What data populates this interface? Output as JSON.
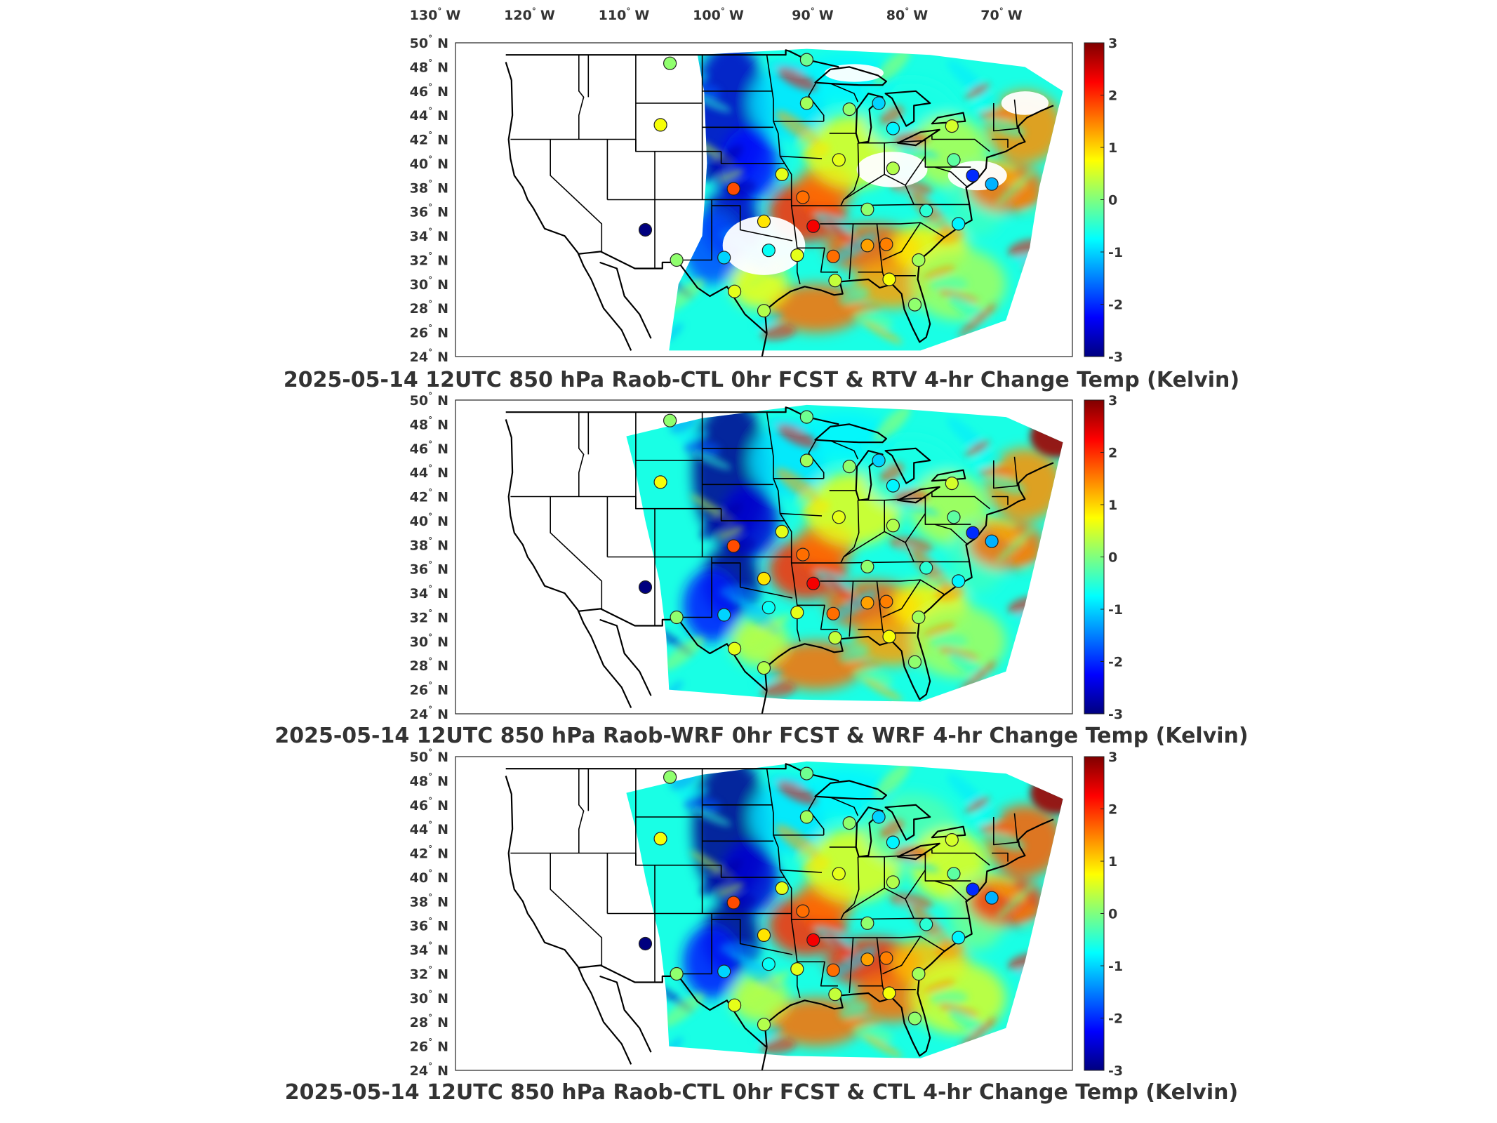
{
  "lon_labels": [
    {
      "deg": "130",
      "dir": "W",
      "lon": -130
    },
    {
      "deg": "120",
      "dir": "W",
      "lon": -120
    },
    {
      "deg": "110",
      "dir": "W",
      "lon": -110
    },
    {
      "deg": "100",
      "dir": "W",
      "lon": -100
    },
    {
      "deg": "90",
      "dir": "W",
      "lon": -90
    },
    {
      "deg": "80",
      "dir": "W",
      "lon": -80
    },
    {
      "deg": "70",
      "dir": "W",
      "lon": -70
    }
  ],
  "lat_labels": [
    {
      "deg": "50",
      "dir": "N",
      "lat": 50
    },
    {
      "deg": "48",
      "dir": "N",
      "lat": 48
    },
    {
      "deg": "46",
      "dir": "N",
      "lat": 46
    },
    {
      "deg": "44",
      "dir": "N",
      "lat": 44
    },
    {
      "deg": "42",
      "dir": "N",
      "lat": 42
    },
    {
      "deg": "40",
      "dir": "N",
      "lat": 40
    },
    {
      "deg": "38",
      "dir": "N",
      "lat": 38
    },
    {
      "deg": "36",
      "dir": "N",
      "lat": 36
    },
    {
      "deg": "34",
      "dir": "N",
      "lat": 34
    },
    {
      "deg": "32",
      "dir": "N",
      "lat": 32
    },
    {
      "deg": "30",
      "dir": "N",
      "lat": 30
    },
    {
      "deg": "28",
      "dir": "N",
      "lat": 28
    },
    {
      "deg": "26",
      "dir": "N",
      "lat": 26
    },
    {
      "deg": "24",
      "dir": "N",
      "lat": 24
    }
  ],
  "colorbar": {
    "ticks": [
      "3",
      "2",
      "1",
      "0",
      "-1",
      "-2",
      "-3"
    ],
    "range": [
      -3,
      3
    ],
    "colormap": [
      "#00007f",
      "#0000ff",
      "#007fff",
      "#00ffff",
      "#7fff7f",
      "#ffff00",
      "#ff7f00",
      "#ff0000",
      "#7f0000"
    ]
  },
  "panels": [
    {
      "title": "2025-05-14 12UTC 850 hPa Raob-CTL 0hr FCST & RTV 4-hr Change Temp (Kelvin)",
      "field": "RTV 4-hr Change Temp",
      "coverage": "satellite-swath"
    },
    {
      "title": "2025-05-14 12UTC 850 hPa Raob-WRF 0hr FCST & WRF 4-hr Change Temp (Kelvin)",
      "field": "WRF 4-hr Change Temp",
      "coverage": "model-domain"
    },
    {
      "title": "2025-05-14 12UTC 850 hPa Raob-CTL 0hr FCST & CTL 4-hr Change Temp (Kelvin)",
      "field": "CTL 4-hr Change Temp",
      "coverage": "model-domain"
    }
  ],
  "chart_data": {
    "type": "scatter",
    "map_extent": {
      "lon": [
        -130,
        -65
      ],
      "lat": [
        24,
        50
      ]
    },
    "raob_station_values_K": [
      {
        "lon": -107.4,
        "lat": 48.3,
        "v": 0.1
      },
      {
        "lon": -108.4,
        "lat": 43.2,
        "v": 0.7
      },
      {
        "lon": -93.0,
        "lat": 48.6,
        "v": -0.1
      },
      {
        "lon": -93.0,
        "lat": 45.0,
        "v": 0.2
      },
      {
        "lon": -85.4,
        "lat": 45.0,
        "v": -1.0
      },
      {
        "lon": -83.9,
        "lat": 42.9,
        "v": -0.8
      },
      {
        "lon": -77.7,
        "lat": 43.1,
        "v": 0.5
      },
      {
        "lon": -88.5,
        "lat": 44.5,
        "v": 0.1
      },
      {
        "lon": -89.6,
        "lat": 40.3,
        "v": 0.6
      },
      {
        "lon": -83.9,
        "lat": 39.6,
        "v": 0.3
      },
      {
        "lon": -77.5,
        "lat": 40.3,
        "v": -0.2
      },
      {
        "lon": -75.5,
        "lat": 39.0,
        "v": -2.0
      },
      {
        "lon": -73.5,
        "lat": 38.3,
        "v": -1.2
      },
      {
        "lon": -95.6,
        "lat": 39.1,
        "v": 0.6
      },
      {
        "lon": -100.7,
        "lat": 37.9,
        "v": 1.8
      },
      {
        "lon": -93.4,
        "lat": 37.2,
        "v": 1.6
      },
      {
        "lon": -97.5,
        "lat": 35.2,
        "v": 0.9
      },
      {
        "lon": -92.3,
        "lat": 34.8,
        "v": 2.3
      },
      {
        "lon": -86.6,
        "lat": 36.2,
        "v": 0.1
      },
      {
        "lon": -80.4,
        "lat": 36.1,
        "v": -0.5
      },
      {
        "lon": -77.0,
        "lat": 35.0,
        "v": -0.8
      },
      {
        "lon": -84.6,
        "lat": 33.3,
        "v": 1.5
      },
      {
        "lon": -86.6,
        "lat": 33.2,
        "v": 1.3
      },
      {
        "lon": -90.2,
        "lat": 32.3,
        "v": 1.6
      },
      {
        "lon": -81.2,
        "lat": 32.0,
        "v": 0.2
      },
      {
        "lon": -94.0,
        "lat": 32.4,
        "v": 0.6
      },
      {
        "lon": -97.0,
        "lat": 32.8,
        "v": -0.7
      },
      {
        "lon": -101.7,
        "lat": 32.2,
        "v": -1.0
      },
      {
        "lon": -106.7,
        "lat": 32.0,
        "v": 0.1
      },
      {
        "lon": -110.0,
        "lat": 34.5,
        "v": -3.0
      },
      {
        "lon": -90.0,
        "lat": 30.3,
        "v": 0.4
      },
      {
        "lon": -84.3,
        "lat": 30.4,
        "v": 0.7
      },
      {
        "lon": -81.6,
        "lat": 28.3,
        "v": 0.1
      },
      {
        "lon": -97.5,
        "lat": 27.8,
        "v": 0.3
      },
      {
        "lon": -100.6,
        "lat": 29.4,
        "v": 0.6
      }
    ]
  }
}
